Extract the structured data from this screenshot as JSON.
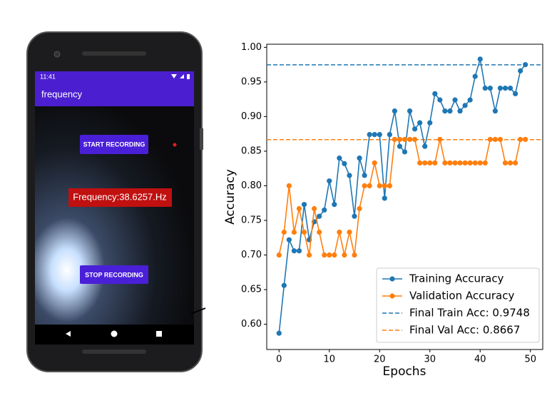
{
  "phone": {
    "status_time": "11:41",
    "app_title": "frequency",
    "start_button": "START RECORDING",
    "frequency_text": "Frequency:38.6257.Hz",
    "stop_button": "STOP RECORDING"
  },
  "chart_data": {
    "type": "line",
    "xlabel": "Epochs",
    "ylabel": "Accuracy",
    "x": [
      0,
      1,
      2,
      3,
      4,
      5,
      6,
      7,
      8,
      9,
      10,
      11,
      12,
      13,
      14,
      15,
      16,
      17,
      18,
      19,
      20,
      21,
      22,
      23,
      24,
      25,
      26,
      27,
      28,
      29,
      30,
      31,
      32,
      33,
      34,
      35,
      36,
      37,
      38,
      39,
      40,
      41,
      42,
      43,
      44,
      45,
      46,
      47,
      48,
      49
    ],
    "series": [
      {
        "name": "Training Accuracy",
        "color": "#1f77b4",
        "values": [
          0.587,
          0.656,
          0.722,
          0.706,
          0.706,
          0.773,
          0.722,
          0.748,
          0.756,
          0.765,
          0.807,
          0.773,
          0.84,
          0.832,
          0.815,
          0.756,
          0.84,
          0.815,
          0.874,
          0.874,
          0.874,
          0.782,
          0.874,
          0.908,
          0.857,
          0.849,
          0.908,
          0.882,
          0.891,
          0.857,
          0.891,
          0.933,
          0.924,
          0.908,
          0.908,
          0.924,
          0.908,
          0.916,
          0.924,
          0.958,
          0.983,
          0.941,
          0.941,
          0.908,
          0.941,
          0.941,
          0.941,
          0.933,
          0.966,
          0.975
        ]
      },
      {
        "name": "Validation Accuracy",
        "color": "#ff7f0e",
        "values": [
          0.7,
          0.733,
          0.8,
          0.733,
          0.767,
          0.733,
          0.7,
          0.767,
          0.733,
          0.7,
          0.7,
          0.7,
          0.733,
          0.7,
          0.733,
          0.7,
          0.767,
          0.8,
          0.8,
          0.833,
          0.8,
          0.8,
          0.8,
          0.867,
          0.867,
          0.867,
          0.867,
          0.867,
          0.833,
          0.833,
          0.833,
          0.833,
          0.867,
          0.833,
          0.833,
          0.833,
          0.833,
          0.833,
          0.833,
          0.833,
          0.833,
          0.833,
          0.867,
          0.867,
          0.867,
          0.833,
          0.833,
          0.833,
          0.867,
          0.867
        ]
      }
    ],
    "reference_lines": [
      {
        "name": "Final Train Acc: 0.9748",
        "value": 0.9748,
        "color": "#1f77b4"
      },
      {
        "name": "Final Val Acc: 0.8667",
        "value": 0.8667,
        "color": "#ff7f0e"
      }
    ],
    "xlim": [
      -2.45,
      52.45
    ],
    "ylim": [
      0.5635,
      1.0045
    ],
    "xticks": [
      0,
      10,
      20,
      30,
      40,
      50
    ],
    "yticks": [
      {
        "value": 0.6,
        "label": "0.60"
      },
      {
        "value": 0.65,
        "label": "0.65"
      },
      {
        "value": 0.7,
        "label": "0.70"
      },
      {
        "value": 0.75,
        "label": "0.75"
      },
      {
        "value": 0.8,
        "label": "0.80"
      },
      {
        "value": 0.85,
        "label": "0.85"
      },
      {
        "value": 0.9,
        "label": "0.90"
      },
      {
        "value": 0.95,
        "label": "0.95"
      },
      {
        "value": 1.0,
        "label": "1.00"
      }
    ],
    "legend": "lower right",
    "grid": false
  }
}
